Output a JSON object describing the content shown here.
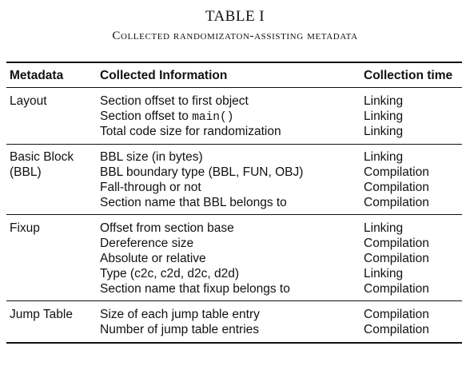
{
  "caption": {
    "number": "TABLE I",
    "title": "Collected randomizaton-assisting metadata"
  },
  "columns": {
    "metadata": "Metadata",
    "information": "Collected Information",
    "time": "Collection time"
  },
  "groups": [
    {
      "metadata": [
        "Layout"
      ],
      "rows": [
        {
          "info_text": "Section offset to first object",
          "time": "Linking"
        },
        {
          "info_text": "Section offset to ",
          "info_code": "main()",
          "time": "Linking"
        },
        {
          "info_text": "Total code size for randomization",
          "time": "Linking"
        }
      ]
    },
    {
      "metadata": [
        "Basic Block",
        "(BBL)"
      ],
      "rows": [
        {
          "info_text": "BBL size (in bytes)",
          "time": "Linking"
        },
        {
          "info_text": "BBL boundary type (BBL, FUN, OBJ)",
          "time": "Compilation"
        },
        {
          "info_text": "Fall-through or not",
          "time": "Compilation"
        },
        {
          "info_text": "Section name that BBL belongs to",
          "time": "Compilation"
        }
      ]
    },
    {
      "metadata": [
        "Fixup"
      ],
      "rows": [
        {
          "info_text": "Offset from section base",
          "time": "Linking"
        },
        {
          "info_text": "Dereference size",
          "time": "Compilation"
        },
        {
          "info_text": "Absolute or relative",
          "time": "Compilation"
        },
        {
          "info_text": "Type (c2c, c2d, d2c, d2d)",
          "time": "Linking"
        },
        {
          "info_text": "Section name that fixup belongs to",
          "time": "Compilation"
        }
      ]
    },
    {
      "metadata": [
        "Jump Table"
      ],
      "rows": [
        {
          "info_text": "Size of each jump table entry",
          "time": "Compilation"
        },
        {
          "info_text": "Number of jump table entries",
          "time": "Compilation"
        }
      ]
    }
  ]
}
